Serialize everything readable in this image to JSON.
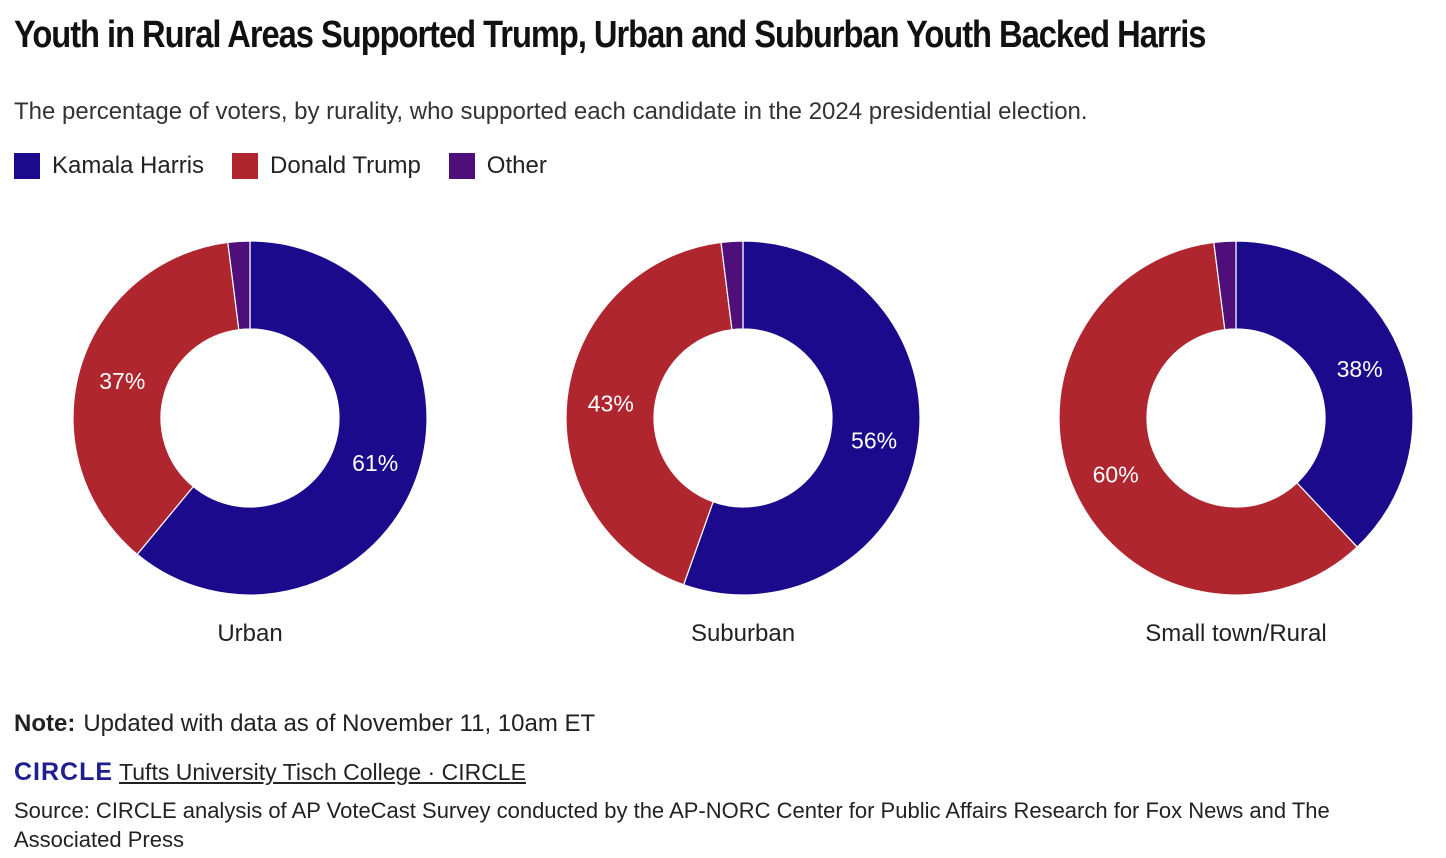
{
  "title": "Youth in Rural Areas Supported Trump, Urban and Suburban Youth Backed Harris",
  "subtitle": "The percentage of voters, by rurality, who supported each candidate in the 2024 presidential election.",
  "legend": [
    {
      "label": "Kamala Harris",
      "color": "#1b0b8c"
    },
    {
      "label": "Donald Trump",
      "color": "#b0262f"
    },
    {
      "label": "Other",
      "color": "#4f0f7a"
    }
  ],
  "chart_data": {
    "type": "pie",
    "donut": true,
    "series_names": [
      "Kamala Harris",
      "Donald Trump",
      "Other"
    ],
    "colors": [
      "#1b0b8c",
      "#b0262f",
      "#4f0f7a"
    ],
    "charts": [
      {
        "category": "Urban",
        "values": [
          61,
          37,
          2
        ],
        "labels": [
          "61%",
          "37%",
          ""
        ]
      },
      {
        "category": "Suburban",
        "values": [
          56,
          43,
          2
        ],
        "labels": [
          "56%",
          "43%",
          ""
        ]
      },
      {
        "category": "Small town/Rural",
        "values": [
          38,
          60,
          2
        ],
        "labels": [
          "38%",
          "60%",
          ""
        ]
      }
    ]
  },
  "note": {
    "label": "Note:",
    "text": "Updated with data as of November 11, 10am ET"
  },
  "credit": {
    "logo": "CIRCLE",
    "link": "Tufts University Tisch College · CIRCLE"
  },
  "source": "Source: CIRCLE analysis of AP VoteCast Survey conducted by the AP-NORC Center for Public Affairs Research for Fox News and The Associated Press"
}
